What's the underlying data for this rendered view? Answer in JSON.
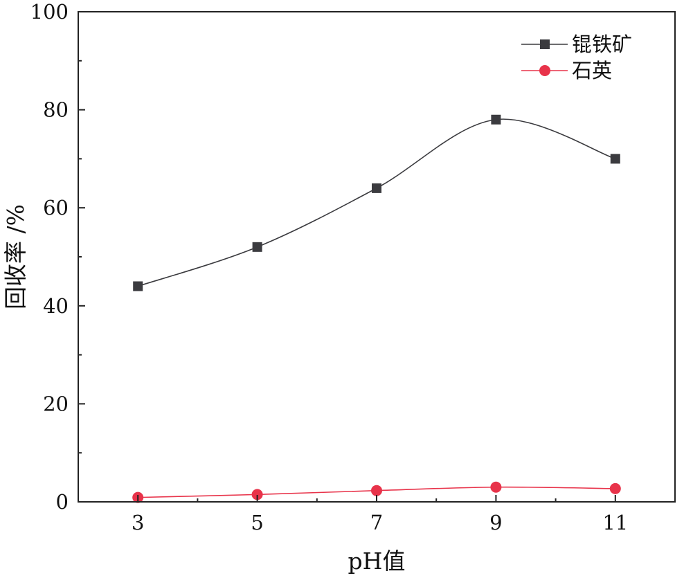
{
  "chart_data": {
    "type": "line",
    "xlabel": "pH值",
    "ylabel": "回收率 /%",
    "xlim": [
      2,
      12
    ],
    "ylim": [
      0,
      100
    ],
    "x_ticks": [
      3,
      5,
      7,
      9,
      11
    ],
    "y_ticks": [
      0,
      20,
      40,
      60,
      80,
      100
    ],
    "x_tick_labels": [
      "3",
      "5",
      "7",
      "9",
      "11"
    ],
    "y_tick_labels": [
      "0",
      "20",
      "40",
      "60",
      "80",
      "100"
    ],
    "legend_position": "top-right",
    "series": [
      {
        "name": "锟铁矿",
        "marker": "square",
        "color": "#3b3b3f",
        "x": [
          3,
          5,
          7,
          9,
          11
        ],
        "y": [
          44,
          52,
          64,
          78,
          70
        ]
      },
      {
        "name": "石英",
        "marker": "circle",
        "color": "#e8334a",
        "x": [
          3,
          5,
          7,
          9,
          11
        ],
        "y": [
          0.9,
          1.5,
          2.3,
          3.0,
          2.7
        ]
      }
    ]
  }
}
